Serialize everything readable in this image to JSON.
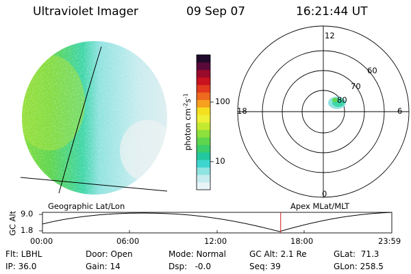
{
  "header": {
    "instrument": "Ultraviolet Imager",
    "date": "09 Sep 07",
    "time": "16:21:44 UT"
  },
  "colorbar": {
    "ticks": [
      "100",
      "10"
    ],
    "unit": "photon cm",
    "unit_sup1": "-2",
    "unit_mid": "s",
    "unit_sup2": "-1",
    "colors": [
      "#e8f4f8",
      "#c7ecef",
      "#8fe3e0",
      "#3fd6cf",
      "#22c9a0",
      "#3acd6a",
      "#5ed54d",
      "#8ee03c",
      "#c4ea30",
      "#eef038",
      "#f5e020",
      "#f6a020",
      "#ee6a1e",
      "#e23a1e",
      "#c81220",
      "#9a0a2a",
      "#5a0a3a",
      "#200a2a"
    ]
  },
  "polar": {
    "labels": {
      "top": "12",
      "left": "18",
      "right": "6",
      "bottom": "0",
      "r60": "60",
      "r70": "70",
      "r80": "80"
    }
  },
  "labels": {
    "left_projection": "Geographic Lat/Lon",
    "right_projection": "Apex MLat/MLT",
    "gc_alt": "GC Alt",
    "alt_max": "9.0",
    "alt_min": "1.8"
  },
  "timeline": {
    "ticks": [
      "00:00",
      "06:00",
      "12:00",
      "18:00",
      "23:59"
    ],
    "current_fraction": 0.6818
  },
  "status": {
    "flt": "Flt: LBHL",
    "ip": "IP: 36.0",
    "door": "Door: Open",
    "gain": "Gain: 14",
    "mode": "Mode: Normal",
    "dsp": "Dsp:   -0.0",
    "gcalt": "GC Alt: 2.1 Re",
    "seq": "Seq: 39",
    "glat": "GLat:  71.3",
    "glon": "GLon: 258.5"
  }
}
